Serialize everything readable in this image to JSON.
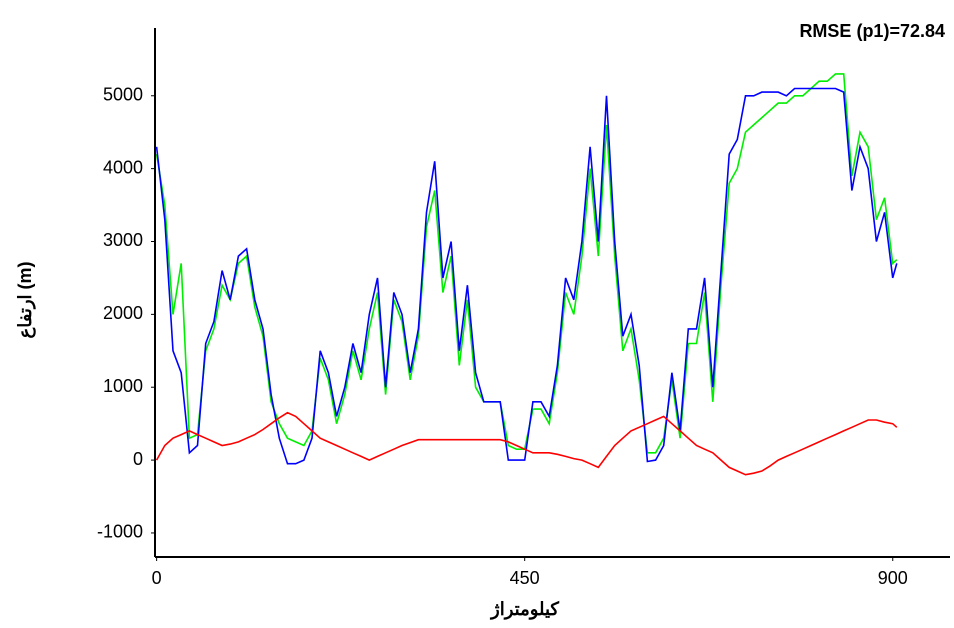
{
  "chart_data": {
    "type": "line",
    "title": "RMSE (p1)=72.84",
    "x_label": "کیلومتراژ",
    "y_label": "ارتفاع (m)",
    "x": [
      0,
      10,
      20,
      30,
      40,
      50,
      60,
      70,
      80,
      90,
      100,
      110,
      120,
      130,
      140,
      150,
      160,
      170,
      180,
      190,
      200,
      210,
      220,
      230,
      240,
      250,
      260,
      270,
      280,
      290,
      300,
      310,
      320,
      330,
      340,
      350,
      360,
      370,
      380,
      390,
      400,
      410,
      420,
      430,
      440,
      450,
      460,
      470,
      480,
      490,
      500,
      510,
      520,
      530,
      540,
      550,
      560,
      570,
      580,
      590,
      600,
      610,
      620,
      630,
      640,
      650,
      660,
      670,
      680,
      690,
      700,
      710,
      720,
      730,
      740,
      750,
      760,
      770,
      780,
      790,
      800,
      810,
      820,
      830,
      840,
      850,
      860,
      870,
      880,
      890,
      900,
      905
    ],
    "series": [
      {
        "color": "#00ee00",
        "values": [
          4200,
          3500,
          2000,
          2700,
          300,
          350,
          1500,
          1800,
          2400,
          2200,
          2700,
          2800,
          2100,
          1700,
          800,
          500,
          300,
          250,
          200,
          400,
          1400,
          1100,
          500,
          900,
          1500,
          1100,
          1800,
          2300,
          900,
          2200,
          1900,
          1100,
          1700,
          3200,
          3700,
          2300,
          2800,
          1300,
          2200,
          1000,
          800,
          800,
          800,
          200,
          150,
          150,
          700,
          700,
          500,
          1200,
          2300,
          2000,
          2800,
          4000,
          2800,
          4600,
          2800,
          1500,
          1800,
          1100,
          100,
          100,
          300,
          1100,
          300,
          1600,
          1600,
          2300,
          800,
          2400,
          3800,
          4000,
          4500,
          4600,
          4700,
          4800,
          4900,
          4900,
          5000,
          5000,
          5100,
          5200,
          5200,
          5300,
          5300,
          3900,
          4500,
          4300,
          3300,
          3600,
          2700,
          2750
        ]
      },
      {
        "color": "#0000ff",
        "values": [
          4300,
          3300,
          1500,
          1200,
          100,
          200,
          1600,
          1900,
          2600,
          2200,
          2800,
          2900,
          2200,
          1800,
          900,
          300,
          -50,
          -50,
          0,
          300,
          1500,
          1200,
          600,
          1000,
          1600,
          1200,
          2000,
          2500,
          1000,
          2300,
          2000,
          1200,
          1800,
          3400,
          4100,
          2500,
          3000,
          1500,
          2400,
          1200,
          800,
          800,
          800,
          0,
          0,
          0,
          800,
          800,
          600,
          1300,
          2500,
          2200,
          3000,
          4300,
          3000,
          5000,
          3000,
          1700,
          2000,
          1300,
          -20,
          0,
          200,
          1200,
          400,
          1800,
          1800,
          2500,
          1000,
          2600,
          4200,
          4400,
          5000,
          5000,
          5050,
          5050,
          5050,
          5000,
          5100,
          5100,
          5100,
          5100,
          5100,
          5100,
          5050,
          3700,
          4300,
          4000,
          3000,
          3400,
          2500,
          2700
        ]
      },
      {
        "color": "#ff0000",
        "values": [
          0,
          200,
          300,
          350,
          400,
          350,
          300,
          250,
          200,
          220,
          250,
          300,
          350,
          420,
          500,
          580,
          650,
          600,
          500,
          400,
          300,
          250,
          200,
          150,
          100,
          50,
          0,
          50,
          100,
          150,
          200,
          240,
          280,
          280,
          280,
          280,
          280,
          280,
          280,
          280,
          280,
          280,
          280,
          250,
          200,
          150,
          100,
          100,
          100,
          80,
          50,
          20,
          0,
          -50,
          -100,
          50,
          200,
          300,
          400,
          450,
          500,
          550,
          600,
          500,
          400,
          300,
          200,
          150,
          100,
          0,
          -100,
          -150,
          -200,
          -180,
          -150,
          -80,
          0,
          50,
          100,
          150,
          200,
          250,
          300,
          350,
          400,
          450,
          500,
          550,
          550,
          520,
          500,
          450
        ]
      }
    ],
    "xlim": [
      -2,
      970
    ],
    "xticks": [
      0,
      450,
      900
    ],
    "ylim": [
      -1330,
      5930
    ],
    "yticks": [
      -1000,
      0,
      1000,
      2000,
      3000,
      4000,
      5000
    ]
  }
}
